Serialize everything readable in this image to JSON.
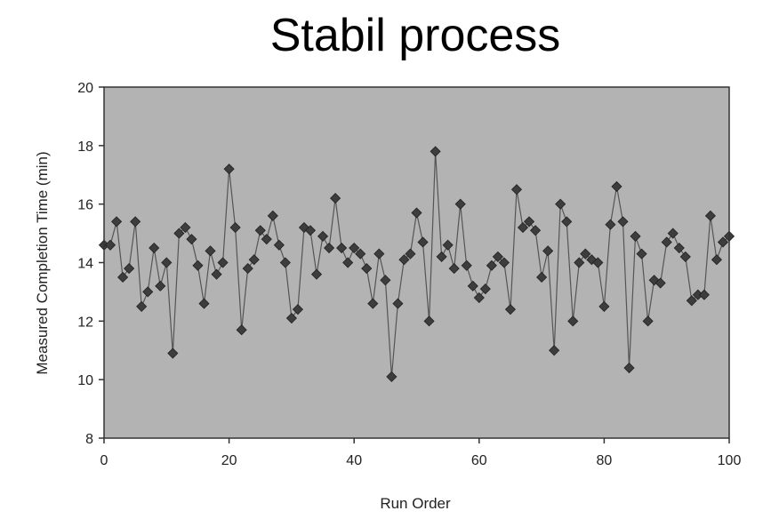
{
  "chart_data": {
    "type": "line",
    "title": "Stabil process",
    "xlabel": "Run Order",
    "ylabel": "Measured Completion Time (min)",
    "xlim": [
      0,
      100
    ],
    "ylim": [
      8,
      20
    ],
    "xticks": [
      0,
      20,
      40,
      60,
      80,
      100
    ],
    "yticks": [
      8,
      10,
      12,
      14,
      16,
      18,
      20
    ],
    "colors": {
      "plot_bg": "#b3b3b3",
      "line": "#555555",
      "marker": "#3d3d3d",
      "frame": "#333333"
    },
    "marker": "diamond",
    "grid": false,
    "series": [
      {
        "x": [
          0,
          1,
          2,
          3,
          4,
          5,
          6,
          7,
          8,
          9,
          10,
          11,
          12,
          13,
          14,
          15,
          16,
          17,
          18,
          19,
          20,
          21,
          22,
          23,
          24,
          25,
          26,
          27,
          28,
          29,
          30,
          31,
          32,
          33,
          34,
          35,
          36,
          37,
          38,
          39,
          40,
          41,
          42,
          43,
          44,
          45,
          46,
          47,
          48,
          49,
          50,
          51,
          52,
          53,
          54,
          55,
          56,
          57,
          58,
          59,
          60,
          61,
          62,
          63,
          64,
          65,
          66,
          67,
          68,
          69,
          70,
          71,
          72,
          73,
          74,
          75,
          76,
          77,
          78,
          79,
          80,
          81,
          82,
          83,
          84,
          85,
          86,
          87,
          88,
          89,
          90,
          91,
          92,
          93,
          94,
          95,
          96,
          97,
          98,
          99,
          100
        ],
        "y": [
          14.6,
          14.6,
          15.4,
          13.5,
          13.8,
          15.4,
          12.5,
          13.0,
          14.5,
          13.2,
          14.0,
          10.9,
          15.0,
          15.2,
          14.8,
          13.9,
          12.6,
          14.4,
          13.6,
          14.0,
          17.2,
          15.2,
          11.7,
          13.8,
          14.1,
          15.1,
          14.8,
          15.6,
          14.6,
          14.0,
          12.1,
          12.4,
          15.2,
          15.1,
          13.6,
          14.9,
          14.5,
          16.2,
          14.5,
          14.0,
          14.5,
          14.3,
          13.8,
          12.6,
          14.3,
          13.4,
          10.1,
          12.6,
          14.1,
          14.3,
          15.7,
          14.7,
          12.0,
          17.8,
          14.2,
          14.6,
          13.8,
          16.0,
          13.9,
          13.2,
          12.8,
          13.1,
          13.9,
          14.2,
          14.0,
          12.4,
          16.5,
          15.2,
          15.4,
          15.1,
          13.5,
          14.4,
          11.0,
          16.0,
          15.4,
          12.0,
          14.0,
          14.3,
          14.1,
          14.0,
          12.5,
          15.3,
          16.6,
          15.4,
          10.4,
          14.9,
          14.3,
          12.0,
          13.4,
          13.3,
          14.7,
          15.0,
          14.5,
          14.2,
          12.7,
          12.9,
          12.9,
          15.6,
          14.1,
          14.7,
          14.9
        ]
      }
    ]
  }
}
